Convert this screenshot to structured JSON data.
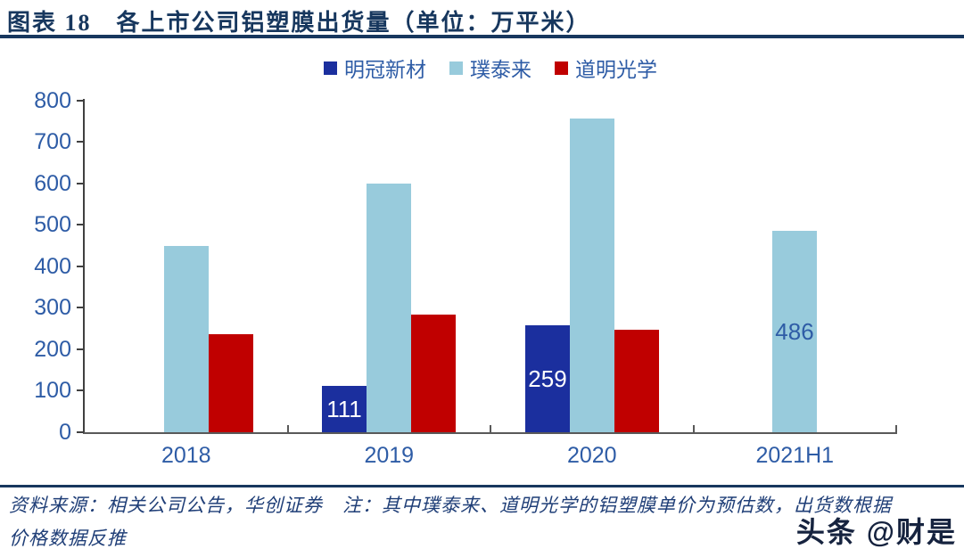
{
  "header": {
    "title": "图表 18　各上市公司铝塑膜出货量（单位：万平米）"
  },
  "chart_data": {
    "type": "bar",
    "title": "各上市公司铝塑膜出货量",
    "unit": "万平米",
    "figure_label": "图表 18",
    "categories": [
      "2018",
      "2019",
      "2020",
      "2021H1"
    ],
    "series": [
      {
        "key": "mingguan",
        "name": "明冠新材",
        "color": "#1B2F9E",
        "values": [
          null,
          111,
          259,
          null
        ],
        "labels": [
          null,
          "111",
          "259",
          null
        ],
        "label_color": "#FFFFFF"
      },
      {
        "key": "putailai",
        "name": "璞泰来",
        "color": "#98CBDC",
        "values": [
          450,
          600,
          757,
          486
        ],
        "labels": [
          null,
          null,
          null,
          "486"
        ],
        "label_color": "#2E5CA6"
      },
      {
        "key": "daoming",
        "name": "道明光学",
        "color": "#C00000",
        "values": [
          237,
          283,
          247,
          null
        ],
        "labels": [
          null,
          null,
          null,
          null
        ],
        "label_color": "#FFFFFF"
      }
    ],
    "xlabel": "",
    "ylabel": "",
    "ylim": [
      0,
      800
    ],
    "ytick_step": 100,
    "grid": false,
    "legend_position": "top-center",
    "axis_label_color": "#2E5CA6",
    "y_axis_line_color": "#404040",
    "x_axis_line_color": "#595959"
  },
  "footer": {
    "line1": "资料来源：相关公司公告，华创证券　注：其中璞泰来、道明光学的铝塑膜单价为预估数，出货数根据",
    "line2": "价格数据反推",
    "watermark": "头条 @财是"
  }
}
